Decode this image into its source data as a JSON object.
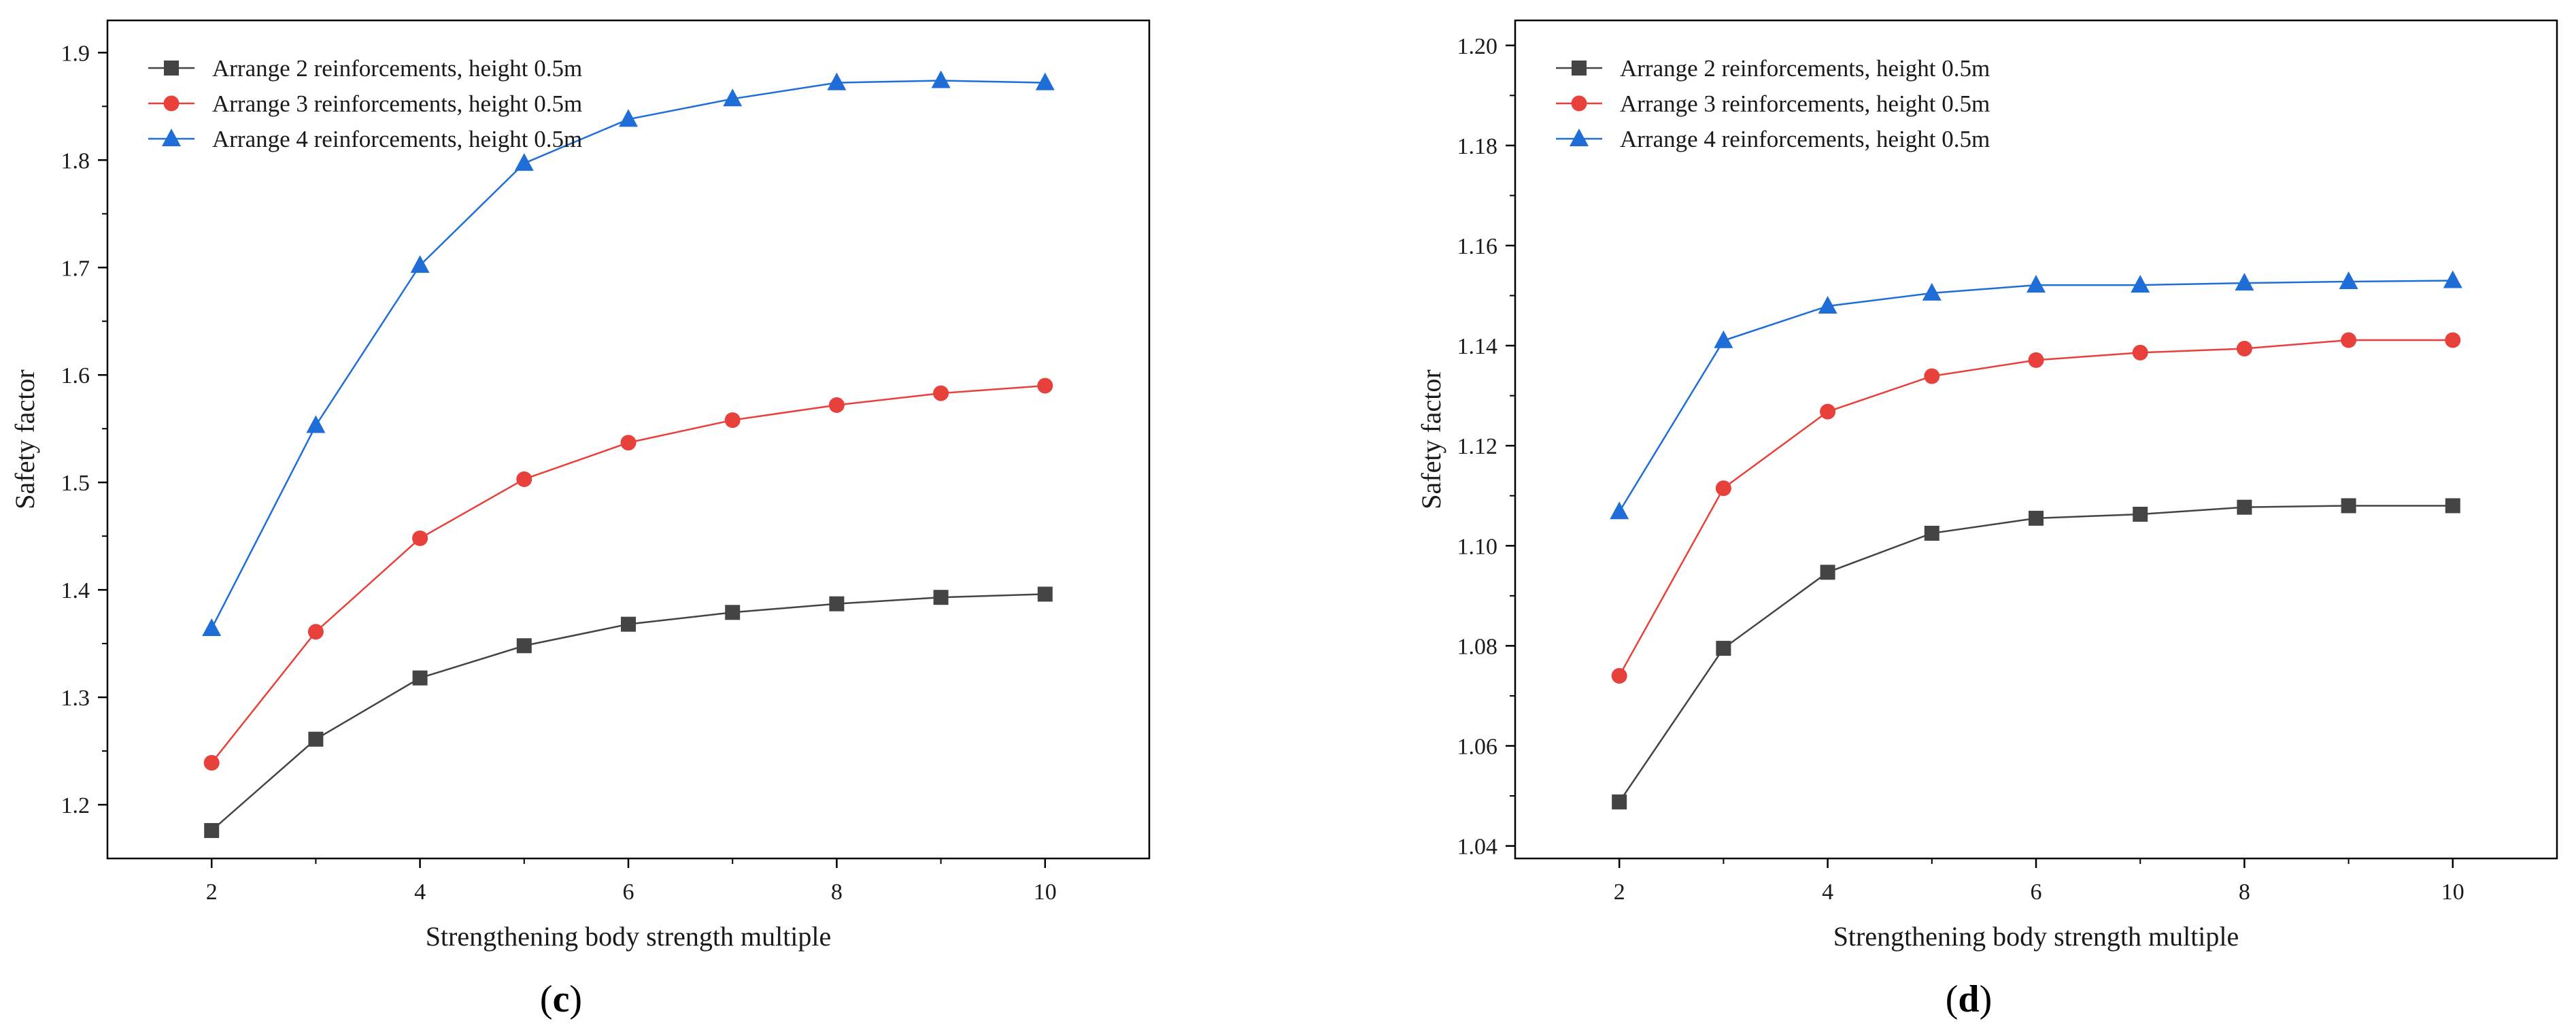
{
  "figure": {
    "panels": [
      {
        "caption_open": "(",
        "caption_letter": "c",
        "caption_close": ")"
      },
      {
        "caption_open": "(",
        "caption_letter": "d",
        "caption_close": ")"
      }
    ]
  },
  "styles": {
    "axis_color": "#000000",
    "series_colors": [
      "#444444",
      "#e8413b",
      "#1f6ed8"
    ],
    "series_markers": [
      "square",
      "circle",
      "triangle"
    ]
  },
  "chart_data": [
    {
      "type": "line",
      "panel": "c",
      "title": "",
      "xlabel": "Strengthening body strength multiple",
      "ylabel": "Safety factor",
      "x": [
        2,
        3,
        4,
        5,
        6,
        7,
        8,
        9,
        10
      ],
      "xlim": [
        1,
        11
      ],
      "ylim": [
        1.15,
        1.93
      ],
      "xticks": [
        2,
        4,
        6,
        8,
        10
      ],
      "yticks": [
        1.2,
        1.3,
        1.4,
        1.5,
        1.6,
        1.7,
        1.8,
        1.9
      ],
      "ytick_labels": [
        "1.2",
        "1.3",
        "1.4",
        "1.5",
        "1.6",
        "1.7",
        "1.8",
        "1.9"
      ],
      "legend_position": "top-left",
      "grid": false,
      "series": [
        {
          "name": "Arrange 2 reinforcements, height 0.5m",
          "values": [
            1.176,
            1.261,
            1.318,
            1.348,
            1.368,
            1.379,
            1.387,
            1.393,
            1.396
          ]
        },
        {
          "name": "Arrange 3 reinforcements, height 0.5m",
          "values": [
            1.239,
            1.361,
            1.448,
            1.503,
            1.537,
            1.558,
            1.572,
            1.583,
            1.59
          ]
        },
        {
          "name": "Arrange 4 reinforcements, height 0.5m",
          "values": [
            1.364,
            1.553,
            1.702,
            1.797,
            1.838,
            1.857,
            1.872,
            1.874,
            1.872
          ]
        }
      ]
    },
    {
      "type": "line",
      "panel": "d",
      "title": "",
      "xlabel": "Strengthening body strength multiple",
      "ylabel": "Safety factor",
      "x": [
        2,
        3,
        4,
        5,
        6,
        7,
        8,
        9,
        10
      ],
      "xlim": [
        1,
        11
      ],
      "ylim": [
        1.0375,
        1.205
      ],
      "xticks": [
        2,
        4,
        6,
        8,
        10
      ],
      "yticks": [
        1.04,
        1.06,
        1.08,
        1.1,
        1.12,
        1.14,
        1.16,
        1.18,
        1.2
      ],
      "ytick_labels": [
        "1.04",
        "1.06",
        "1.08",
        "1.10",
        "1.12",
        "1.14",
        "1.16",
        "1.18",
        "1.20"
      ],
      "legend_position": "top-left",
      "grid": false,
      "series": [
        {
          "name": "Arrange 2 reinforcements, height 0.5m",
          "values": [
            1.0488,
            1.0795,
            1.0947,
            1.1025,
            1.1055,
            1.1063,
            1.1077,
            1.108,
            1.108
          ]
        },
        {
          "name": "Arrange 3 reinforcements, height 0.5m",
          "values": [
            1.074,
            1.1115,
            1.1268,
            1.1339,
            1.1371,
            1.1386,
            1.1394,
            1.1411,
            1.1411
          ]
        },
        {
          "name": "Arrange 4 reinforcements, height 0.5m",
          "values": [
            1.1068,
            1.141,
            1.1479,
            1.1505,
            1.1521,
            1.1521,
            1.1525,
            1.1528,
            1.153
          ]
        }
      ]
    }
  ]
}
